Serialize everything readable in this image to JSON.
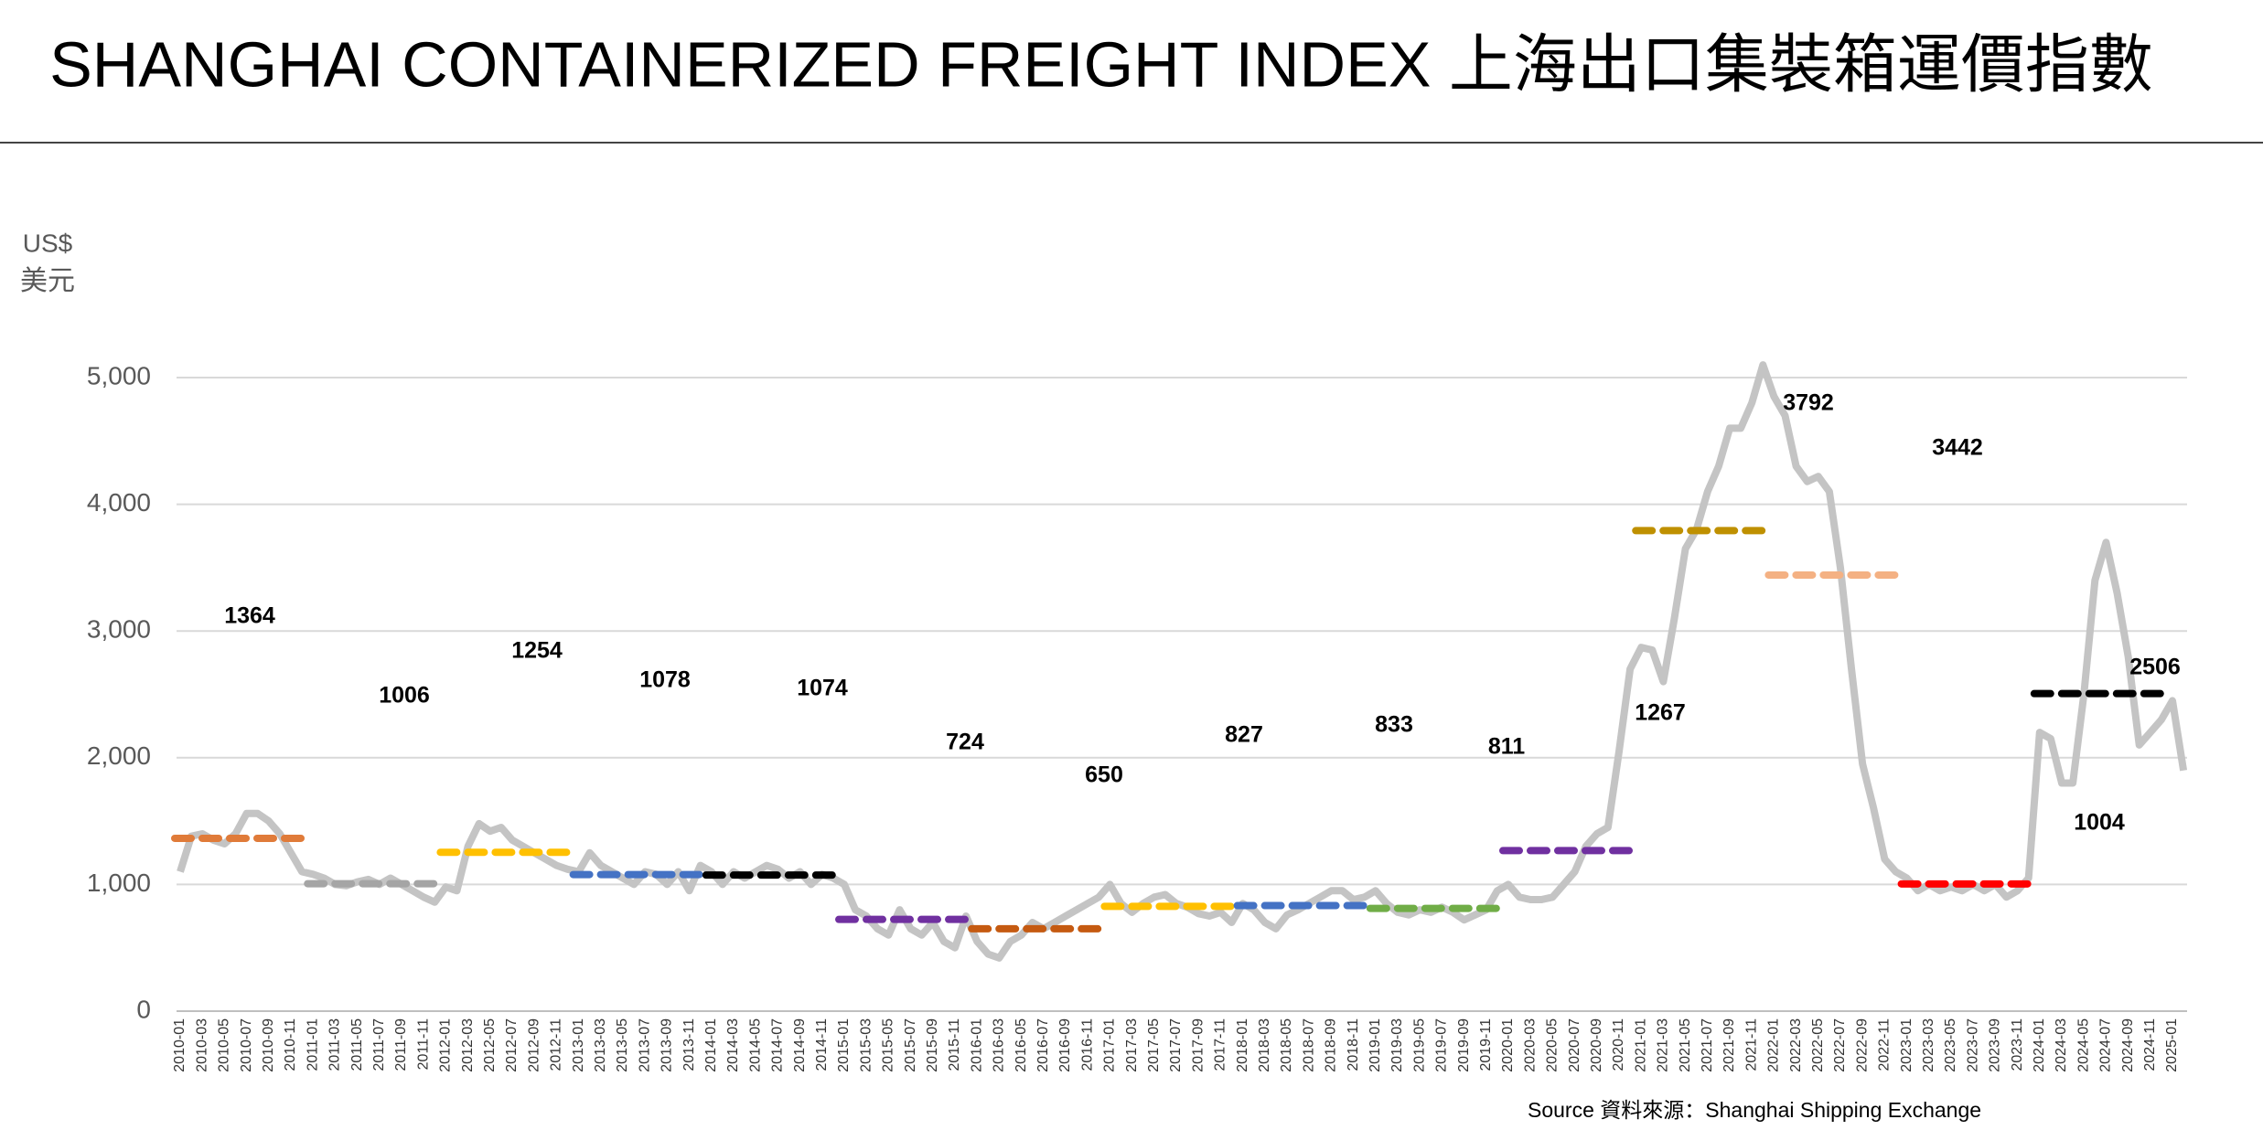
{
  "chart_data": {
    "type": "line",
    "title": "SHANGHAI CONTAINERIZED FREIGHT INDEX 上海出口集裝箱運價指數",
    "y_label": [
      "US$",
      "美元"
    ],
    "source": "Source 資料來源：Shanghai Shipping Exchange",
    "categories": [
      "2010-01",
      null,
      "2010-03",
      null,
      "2010-05",
      null,
      "2010-07",
      null,
      "2010-09",
      null,
      "2010-11",
      null,
      "2011-01",
      null,
      "2011-03",
      null,
      "2011-05",
      null,
      "2011-07",
      null,
      "2011-09",
      null,
      "2011-11",
      null,
      "2012-01",
      null,
      "2012-03",
      null,
      "2012-05",
      null,
      "2012-07",
      null,
      "2012-09",
      null,
      "2012-11",
      null,
      "2013-01",
      null,
      "2013-03",
      null,
      "2013-05",
      null,
      "2013-07",
      null,
      "2013-09",
      null,
      "2013-11",
      null,
      "2014-01",
      null,
      "2014-03",
      null,
      "2014-05",
      null,
      "2014-07",
      null,
      "2014-09",
      null,
      "2014-11",
      null,
      "2015-01",
      null,
      "2015-03",
      null,
      "2015-05",
      null,
      "2015-07",
      null,
      "2015-09",
      null,
      "2015-11",
      null,
      "2016-01",
      null,
      "2016-03",
      null,
      "2016-05",
      null,
      "2016-07",
      null,
      "2016-09",
      null,
      "2016-11",
      null,
      "2017-01",
      null,
      "2017-03",
      null,
      "2017-05",
      null,
      "2017-07",
      null,
      "2017-09",
      null,
      "2017-11",
      null,
      "2018-01",
      null,
      "2018-03",
      null,
      "2018-05",
      null,
      "2018-07",
      null,
      "2018-09",
      null,
      "2018-11",
      null,
      "2019-01",
      null,
      "2019-03",
      null,
      "2019-05",
      null,
      "2019-07",
      null,
      "2019-09",
      null,
      "2019-11",
      null,
      "2020-01",
      null,
      "2020-03",
      null,
      "2020-05",
      null,
      "2020-07",
      null,
      "2020-09",
      null,
      "2020-11",
      null,
      "2021-01",
      null,
      "2021-03",
      null,
      "2021-05",
      null,
      "2021-07",
      null,
      "2021-09",
      null,
      "2021-11",
      null,
      "2022-01",
      null,
      "2022-03",
      null,
      "2022-05",
      null,
      "2022-07",
      null,
      "2022-09",
      null,
      "2022-11",
      null,
      "2023-01",
      null,
      "2023-03",
      null,
      "2023-05",
      null,
      "2023-07",
      null,
      "2023-09",
      null,
      "2023-11",
      null,
      "2024-01",
      null,
      "2024-03",
      null,
      "2024-05",
      null,
      "2024-07",
      null,
      "2024-09",
      null,
      "2024-11",
      null,
      "2025-01",
      null
    ],
    "values": [
      1100,
      1380,
      1400,
      1350,
      1320,
      1400,
      1560,
      1560,
      1500,
      1400,
      1250,
      1100,
      1080,
      1050,
      1000,
      990,
      1020,
      1040,
      1000,
      1050,
      1000,
      950,
      900,
      860,
      980,
      950,
      1300,
      1480,
      1420,
      1450,
      1350,
      1300,
      1250,
      1200,
      1150,
      1120,
      1100,
      1250,
      1150,
      1100,
      1050,
      1000,
      1100,
      1080,
      1000,
      1100,
      950,
      1150,
      1100,
      1000,
      1100,
      1050,
      1100,
      1150,
      1120,
      1050,
      1100,
      1000,
      1080,
      1050,
      1000,
      800,
      750,
      650,
      600,
      800,
      650,
      600,
      700,
      550,
      500,
      750,
      550,
      450,
      420,
      550,
      600,
      700,
      650,
      700,
      750,
      800,
      850,
      900,
      1000,
      850,
      780,
      850,
      900,
      920,
      850,
      820,
      770,
      750,
      780,
      700,
      850,
      800,
      700,
      650,
      760,
      800,
      850,
      900,
      950,
      950,
      880,
      900,
      950,
      850,
      780,
      760,
      800,
      780,
      820,
      780,
      720,
      760,
      800,
      950,
      1000,
      900,
      880,
      880,
      900,
      1000,
      1100,
      1300,
      1400,
      1450,
      2050,
      2700,
      2870,
      2850,
      2600,
      3100,
      3650,
      3800,
      4100,
      4300,
      4600,
      4600,
      4800,
      5100,
      4850,
      4700,
      4300,
      4180,
      4220,
      4100,
      3500,
      2700,
      1950,
      1600,
      1200,
      1100,
      1050,
      950,
      1000,
      950,
      980,
      950,
      1000,
      950,
      1000,
      900,
      950,
      1050,
      2200,
      2150,
      1800,
      1800,
      2500,
      3400,
      3700,
      3300,
      2800,
      2100,
      2200,
      2300,
      2450,
      1900
    ],
    "color": "#c4c4c4",
    "annual_averages": [
      {
        "value": 1364,
        "color": "#e07b39"
      },
      {
        "value": 1006,
        "color": "#a5a5a5"
      },
      {
        "value": 1254,
        "color": "#ffc000"
      },
      {
        "value": 1078,
        "color": "#4472c4"
      },
      {
        "value": 1074,
        "color": "#000000"
      },
      {
        "value": 724,
        "color": "#7030a0"
      },
      {
        "value": 650,
        "color": "#c55a11"
      },
      {
        "value": 827,
        "color": "#ffc000"
      },
      {
        "value": 833,
        "color": "#4472c4"
      },
      {
        "value": 811,
        "color": "#70ad47"
      },
      {
        "value": 1267,
        "color": "#7030a0"
      },
      {
        "value": 3792,
        "color": "#bf9000"
      },
      {
        "value": 3442,
        "color": "#f4b183"
      },
      {
        "value": 1004,
        "color": "#ff0000"
      },
      {
        "value": 2506,
        "color": "#000000"
      }
    ],
    "ylim": [
      0,
      5000
    ],
    "yticks": [
      0,
      {
        "value": 1000,
        "label": "1,000"
      },
      {
        "value": 2000,
        "label": "2,000"
      },
      {
        "value": 3000,
        "label": "3,000"
      },
      {
        "value": 4000,
        "label": "4,000"
      },
      {
        "value": 5000,
        "label": "5,000"
      }
    ],
    "grid": true
  }
}
